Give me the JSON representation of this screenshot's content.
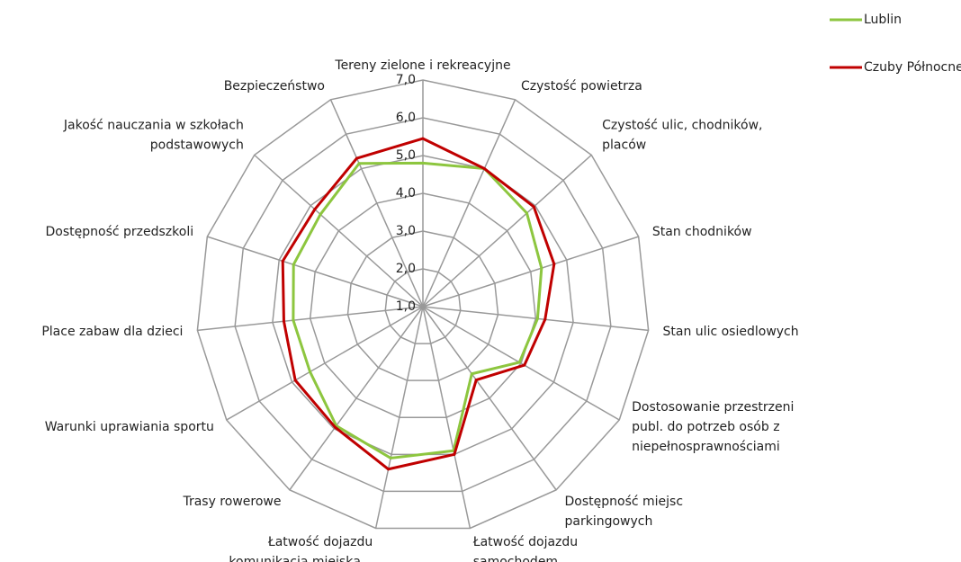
{
  "chart_data": {
    "type": "radar",
    "categories": [
      [
        "Tereny zielone i rekreacyjne"
      ],
      [
        "Czystość powietrza"
      ],
      [
        "Czystość ulic, chodników,",
        "placów"
      ],
      [
        "Stan chodników"
      ],
      [
        "Stan ulic osiedlowych"
      ],
      [
        "Dostosowanie przestrzeni",
        "publ. do potrzeb osób z",
        "niepełnosprawnościami"
      ],
      [
        "Dostępność miejsc",
        "parkingowych"
      ],
      [
        "Łatwość dojazdu",
        "samochodem..."
      ],
      [
        "Łatwość dojazdu",
        "komunikacją miejską..."
      ],
      [
        "Trasy rowerowe"
      ],
      [
        "Warunki uprawiania sportu"
      ],
      [
        "Place zabaw dla dzieci"
      ],
      [
        "Dostępność przedszkoli"
      ],
      [
        "Jakość nauczania w szkołach",
        "podstawowych"
      ],
      [
        "Bezpieczeństwo"
      ]
    ],
    "series": [
      {
        "name": "Lublin",
        "color": "#8dc63f",
        "values": [
          4.8,
          5.0,
          4.7,
          4.3,
          4.05,
          3.95,
          3.2,
          4.9,
          5.1,
          4.9,
          4.45,
          4.45,
          4.6,
          4.65,
          5.15
        ]
      },
      {
        "name": "Czuby Północne",
        "color": "#c00000",
        "values": [
          5.45,
          5.0,
          4.95,
          4.65,
          4.25,
          4.1,
          3.4,
          5.0,
          5.4,
          4.95,
          4.9,
          4.7,
          4.9,
          4.85,
          5.3
        ]
      }
    ],
    "ylim": [
      1,
      7
    ],
    "yticks": [
      {
        "value": 1,
        "label": "1,0"
      },
      {
        "value": 2,
        "label": "2,0"
      },
      {
        "value": 3,
        "label": "3,0"
      },
      {
        "value": 4,
        "label": "4,0"
      },
      {
        "value": 5,
        "label": "5,0"
      },
      {
        "value": 6,
        "label": "6,0"
      },
      {
        "value": 7,
        "label": "7,0"
      }
    ],
    "grid": true,
    "legend": "top-right"
  }
}
